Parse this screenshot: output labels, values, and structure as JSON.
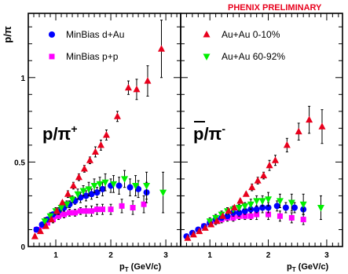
{
  "header": {
    "preliminary": "PHENIX PRELIMINARY"
  },
  "ylabel": "p/π",
  "colors": {
    "red": "#e8001c",
    "blue": "#0000ff",
    "magenta": "#ff00ff",
    "green": "#00ee00",
    "frame": "#000000"
  },
  "chart_data": [
    {
      "type": "scatter",
      "panel": "left",
      "label_main": "p/π",
      "label_sup": "+",
      "ylim": [
        0,
        1.38
      ],
      "xlim": [
        0.5,
        3.27
      ],
      "xlabel": "p",
      "xlabel_sub": "T",
      "xlabel_unit": " (GeV/c)",
      "xticks": [
        "1",
        "2",
        "3"
      ],
      "yticks": [
        "0",
        "0.5",
        "1"
      ],
      "legend": {
        "placement": "top-left",
        "entries": [
          {
            "name": "MinBias d+Au",
            "marker": "circle",
            "color": "#0000ff"
          },
          {
            "name": "MinBias p+p",
            "marker": "square",
            "color": "#ff00ff"
          }
        ]
      },
      "series": [
        {
          "name": "MinBias d+Au",
          "marker": "circle",
          "color": "#0000ff",
          "x": [
            0.65,
            0.75,
            0.85,
            0.95,
            1.05,
            1.15,
            1.25,
            1.35,
            1.45,
            1.55,
            1.65,
            1.75,
            1.85,
            2.0,
            2.15,
            2.35,
            2.5,
            2.65
          ],
          "y": [
            0.1,
            0.13,
            0.16,
            0.19,
            0.21,
            0.23,
            0.25,
            0.27,
            0.29,
            0.3,
            0.31,
            0.32,
            0.34,
            0.36,
            0.36,
            0.35,
            0.34,
            0.32
          ],
          "err": [
            0.01,
            0.01,
            0.01,
            0.01,
            0.02,
            0.02,
            0.02,
            0.02,
            0.03,
            0.03,
            0.03,
            0.03,
            0.04,
            0.04,
            0.05,
            0.05,
            0.05,
            0.06
          ]
        },
        {
          "name": "MinBias p+p",
          "marker": "square",
          "color": "#ff00ff",
          "x": [
            0.65,
            0.75,
            0.85,
            0.95,
            1.05,
            1.15,
            1.25,
            1.35,
            1.45,
            1.55,
            1.65,
            1.75,
            1.85,
            2.0,
            2.2,
            2.4,
            2.6
          ],
          "y": [
            0.1,
            0.12,
            0.14,
            0.16,
            0.18,
            0.19,
            0.2,
            0.2,
            0.21,
            0.21,
            0.21,
            0.22,
            0.22,
            0.22,
            0.24,
            0.23,
            0.25
          ],
          "err": [
            0.01,
            0.01,
            0.01,
            0.02,
            0.02,
            0.02,
            0.02,
            0.02,
            0.02,
            0.03,
            0.03,
            0.03,
            0.03,
            0.03,
            0.04,
            0.04,
            0.05
          ]
        },
        {
          "name": "Au+Au 0-10%",
          "marker": "triangle-up",
          "color": "#e8001c",
          "x": [
            0.62,
            0.72,
            0.82,
            0.92,
            1.02,
            1.12,
            1.22,
            1.32,
            1.42,
            1.52,
            1.62,
            1.72,
            1.82,
            1.92,
            2.12,
            2.32,
            2.47,
            2.67,
            2.92
          ],
          "y": [
            0.06,
            0.09,
            0.12,
            0.16,
            0.21,
            0.26,
            0.31,
            0.36,
            0.41,
            0.46,
            0.51,
            0.56,
            0.6,
            0.66,
            0.77,
            0.94,
            0.93,
            0.98,
            1.17
          ],
          "err": [
            0.01,
            0.01,
            0.01,
            0.01,
            0.01,
            0.01,
            0.02,
            0.02,
            0.02,
            0.02,
            0.02,
            0.03,
            0.03,
            0.03,
            0.03,
            0.04,
            0.06,
            0.09,
            0.17
          ]
        },
        {
          "name": "Au+Au 60-92%",
          "marker": "triangle-down",
          "color": "#00ee00",
          "x": [
            0.8,
            0.9,
            1.0,
            1.1,
            1.2,
            1.3,
            1.4,
            1.5,
            1.6,
            1.7,
            1.8,
            1.9,
            2.05,
            2.25,
            2.45,
            2.65,
            2.95
          ],
          "y": [
            0.15,
            0.18,
            0.21,
            0.23,
            0.25,
            0.28,
            0.31,
            0.33,
            0.34,
            0.36,
            0.37,
            0.38,
            0.37,
            0.4,
            0.36,
            0.36,
            0.32
          ],
          "err": [
            0.02,
            0.02,
            0.02,
            0.02,
            0.02,
            0.02,
            0.03,
            0.03,
            0.04,
            0.04,
            0.04,
            0.05,
            0.05,
            0.05,
            0.06,
            0.08,
            0.12
          ]
        }
      ]
    },
    {
      "type": "scatter",
      "panel": "right",
      "label_main": "p/π",
      "label_sup": "-",
      "ylim": [
        0,
        1.38
      ],
      "xlim": [
        0.5,
        3.27
      ],
      "xlabel": "p",
      "xlabel_sub": "T",
      "xlabel_unit": " (GeV/c)",
      "xticks": [
        "1",
        "2",
        "3"
      ],
      "legend": {
        "placement": "top-right",
        "entries": [
          {
            "name": "Au+Au  0-10%",
            "marker": "triangle-up",
            "color": "#e8001c"
          },
          {
            "name": "Au+Au 60-92%",
            "marker": "triangle-down",
            "color": "#00ee00"
          }
        ]
      },
      "series": [
        {
          "name": "MinBias d+Au",
          "marker": "circle",
          "color": "#0000ff",
          "x": [
            0.6,
            0.7,
            0.8,
            0.9,
            1.0,
            1.1,
            1.2,
            1.3,
            1.4,
            1.5,
            1.6,
            1.7,
            1.8,
            1.9,
            2.0,
            2.15,
            2.3,
            2.45,
            2.6
          ],
          "y": [
            0.06,
            0.08,
            0.1,
            0.12,
            0.14,
            0.16,
            0.17,
            0.18,
            0.2,
            0.2,
            0.21,
            0.22,
            0.22,
            0.23,
            0.23,
            0.24,
            0.23,
            0.23,
            0.22
          ],
          "err": [
            0.01,
            0.01,
            0.01,
            0.01,
            0.01,
            0.01,
            0.01,
            0.01,
            0.02,
            0.02,
            0.02,
            0.02,
            0.02,
            0.03,
            0.03,
            0.03,
            0.03,
            0.03,
            0.03
          ]
        },
        {
          "name": "MinBias p+p",
          "marker": "square",
          "color": "#ff00ff",
          "x": [
            0.9,
            1.0,
            1.1,
            1.2,
            1.3,
            1.4,
            1.5,
            1.6,
            1.7,
            1.8,
            2.0,
            2.2,
            2.4,
            2.6
          ],
          "y": [
            0.12,
            0.14,
            0.15,
            0.16,
            0.17,
            0.17,
            0.18,
            0.18,
            0.18,
            0.19,
            0.19,
            0.18,
            0.17,
            0.16
          ],
          "err": [
            0.01,
            0.01,
            0.02,
            0.02,
            0.02,
            0.02,
            0.02,
            0.02,
            0.02,
            0.03,
            0.03,
            0.03,
            0.03,
            0.03
          ]
        },
        {
          "name": "Au+Au  0-10%",
          "marker": "triangle-up",
          "color": "#e8001c",
          "x": [
            0.62,
            0.72,
            0.82,
            0.92,
            1.02,
            1.12,
            1.22,
            1.32,
            1.42,
            1.52,
            1.62,
            1.72,
            1.82,
            1.92,
            2.02,
            2.12,
            2.32,
            2.52,
            2.7,
            2.92
          ],
          "y": [
            0.05,
            0.07,
            0.09,
            0.11,
            0.13,
            0.15,
            0.18,
            0.21,
            0.23,
            0.27,
            0.31,
            0.35,
            0.39,
            0.42,
            0.48,
            0.51,
            0.6,
            0.68,
            0.75,
            0.71
          ],
          "err": [
            0.01,
            0.01,
            0.01,
            0.01,
            0.01,
            0.01,
            0.01,
            0.01,
            0.01,
            0.01,
            0.01,
            0.02,
            0.02,
            0.02,
            0.03,
            0.03,
            0.04,
            0.05,
            0.08,
            0.1
          ]
        },
        {
          "name": "Au+Au 60-92%",
          "marker": "triangle-down",
          "color": "#00ee00",
          "x": [
            1.0,
            1.1,
            1.2,
            1.3,
            1.4,
            1.5,
            1.6,
            1.7,
            1.8,
            1.9,
            2.0,
            2.2,
            2.4,
            2.6,
            2.9
          ],
          "y": [
            0.15,
            0.17,
            0.19,
            0.21,
            0.22,
            0.23,
            0.24,
            0.25,
            0.27,
            0.27,
            0.28,
            0.27,
            0.26,
            0.25,
            0.23
          ],
          "err": [
            0.02,
            0.02,
            0.02,
            0.02,
            0.02,
            0.02,
            0.02,
            0.03,
            0.03,
            0.03,
            0.04,
            0.04,
            0.05,
            0.06,
            0.07
          ]
        }
      ]
    }
  ]
}
